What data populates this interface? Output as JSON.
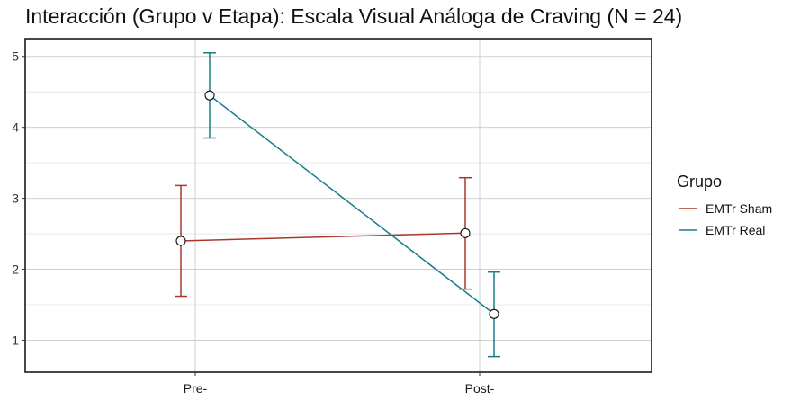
{
  "chart_data": {
    "type": "line",
    "title": "Interacción (Grupo v Etapa): Escala Visual Análoga de Craving (N = 24)",
    "xlabel": "",
    "ylabel": "",
    "categories": [
      "Pre-",
      "Post-"
    ],
    "ylim": [
      0.55,
      5.25
    ],
    "yticks": [
      1,
      2,
      3,
      4,
      5
    ],
    "grid": true,
    "error_bars": true,
    "legend": {
      "title": "Grupo",
      "position": "right"
    },
    "series": [
      {
        "name": "EMTr Sham",
        "color": "#a8382c",
        "values": [
          2.4,
          2.51
        ],
        "error_low": [
          1.62,
          1.72
        ],
        "error_high": [
          3.18,
          3.29
        ]
      },
      {
        "name": "EMTr Real",
        "color": "#167d8a",
        "values": [
          4.45,
          1.37
        ],
        "error_low": [
          3.85,
          0.77
        ],
        "error_high": [
          5.05,
          1.96
        ]
      }
    ]
  }
}
